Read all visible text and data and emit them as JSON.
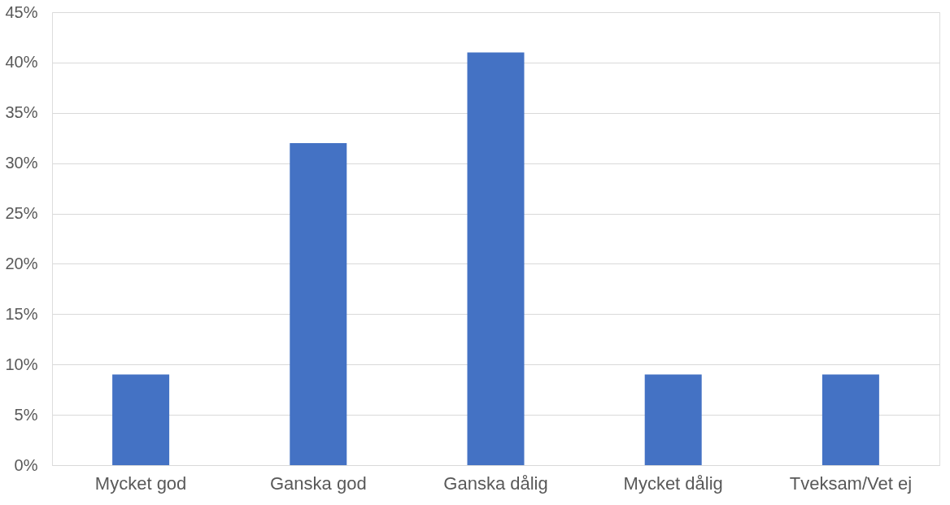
{
  "chart_data": {
    "type": "bar",
    "categories": [
      "Mycket god",
      "Ganska god",
      "Ganska dålig",
      "Mycket dålig",
      "Tveksam/Vet ej"
    ],
    "values": [
      9,
      32,
      41,
      9,
      9
    ],
    "color": "#4472c4",
    "ylim": [
      0,
      45
    ],
    "yticks": [
      {
        "value": 0,
        "label": "0%"
      },
      {
        "value": 5,
        "label": "5%"
      },
      {
        "value": 10,
        "label": "10%"
      },
      {
        "value": 15,
        "label": "15%"
      },
      {
        "value": 20,
        "label": "20%"
      },
      {
        "value": 25,
        "label": "25%"
      },
      {
        "value": 30,
        "label": "30%"
      },
      {
        "value": 35,
        "label": "35%"
      },
      {
        "value": 40,
        "label": "40%"
      },
      {
        "value": 45,
        "label": "45%"
      }
    ],
    "grid": "y"
  }
}
